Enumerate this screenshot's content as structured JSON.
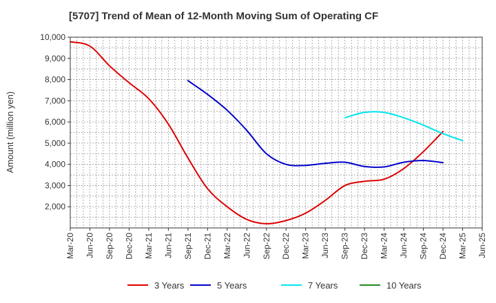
{
  "chart_data": {
    "type": "line",
    "title": "[5707]  Trend of Mean of 12-Month Moving Sum of Operating CF",
    "xlabel": "",
    "ylabel": "Amount (million yen)",
    "ylim": [
      1000,
      10000
    ],
    "yticks": [
      2000,
      3000,
      4000,
      5000,
      6000,
      7000,
      8000,
      9000,
      10000
    ],
    "ytick_labels": [
      "2,000",
      "3,000",
      "4,000",
      "5,000",
      "6,000",
      "7,000",
      "8,000",
      "9,000",
      "10,000"
    ],
    "x_categories": [
      "Mar-20",
      "Jun-20",
      "Sep-20",
      "Dec-20",
      "Mar-21",
      "Jun-21",
      "Sep-21",
      "Dec-21",
      "Mar-22",
      "Jun-22",
      "Sep-22",
      "Dec-22",
      "Mar-23",
      "Jun-23",
      "Sep-23",
      "Dec-23",
      "Mar-24",
      "Jun-24",
      "Sep-24",
      "Dec-24",
      "Mar-25",
      "Jun-25"
    ],
    "grid": true,
    "legend_position": "bottom",
    "series": [
      {
        "name": "3 Years",
        "color": "#dd0000",
        "start_index": 0,
        "values": [
          9780,
          9580,
          8650,
          7850,
          7100,
          5900,
          4300,
          2850,
          2000,
          1400,
          1200,
          1350,
          1700,
          2300,
          3000,
          3200,
          3300,
          3800,
          4600,
          5550
        ]
      },
      {
        "name": "5 Years",
        "color": "#0000cc",
        "start_index": 6,
        "values": [
          7950,
          7300,
          6550,
          5600,
          4500,
          4000,
          3950,
          4050,
          4100,
          3900,
          3880,
          4100,
          4180,
          4080
        ]
      },
      {
        "name": "7 Years",
        "color": "#00e5ee",
        "start_index": 14,
        "values": [
          6200,
          6450,
          6450,
          6200,
          5850,
          5450,
          5120
        ]
      },
      {
        "name": "10 Years",
        "color": "#228b22",
        "start_index": 0,
        "values": []
      }
    ]
  }
}
